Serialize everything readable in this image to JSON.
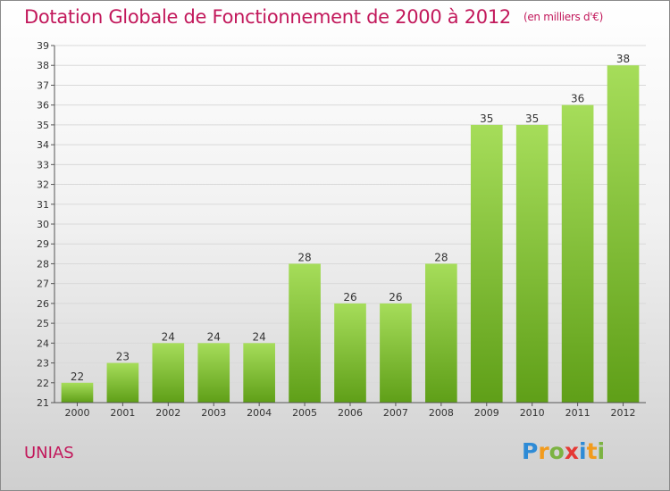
{
  "title": "Dotation Globale de Fonctionnement de 2000 à 2012",
  "unit_note": "(en milliers d'€)",
  "commune": "UNIAS",
  "brand": {
    "letters": [
      "P",
      "r",
      "o",
      "x",
      "i",
      "t",
      "i"
    ],
    "colors": [
      "#2e8bd6",
      "#f29b1d",
      "#7cb342",
      "#e53935",
      "#2e8bd6",
      "#f29b1d",
      "#7cb342"
    ]
  },
  "colors": {
    "title": "#c2185b",
    "bar_light": "#a6dd5a",
    "bar_dark": "#5f9f18",
    "axis": "#555555",
    "grid": "#d9d9d9"
  },
  "chart_data": {
    "type": "bar",
    "title": "Dotation Globale de Fonctionnement de 2000 à 2012",
    "categories": [
      "2000",
      "2001",
      "2002",
      "2003",
      "2004",
      "2005",
      "2006",
      "2007",
      "2008",
      "2009",
      "2010",
      "2011",
      "2012"
    ],
    "values": [
      22,
      23,
      24,
      24,
      24,
      28,
      26,
      26,
      28,
      35,
      35,
      36,
      38
    ],
    "ylim": [
      21,
      39
    ],
    "yticks": [
      21,
      22,
      23,
      24,
      25,
      26,
      27,
      28,
      29,
      30,
      31,
      32,
      33,
      34,
      35,
      36,
      37,
      38,
      39
    ],
    "xlabel": "",
    "ylabel": "",
    "grid": true,
    "data_labels": true
  }
}
